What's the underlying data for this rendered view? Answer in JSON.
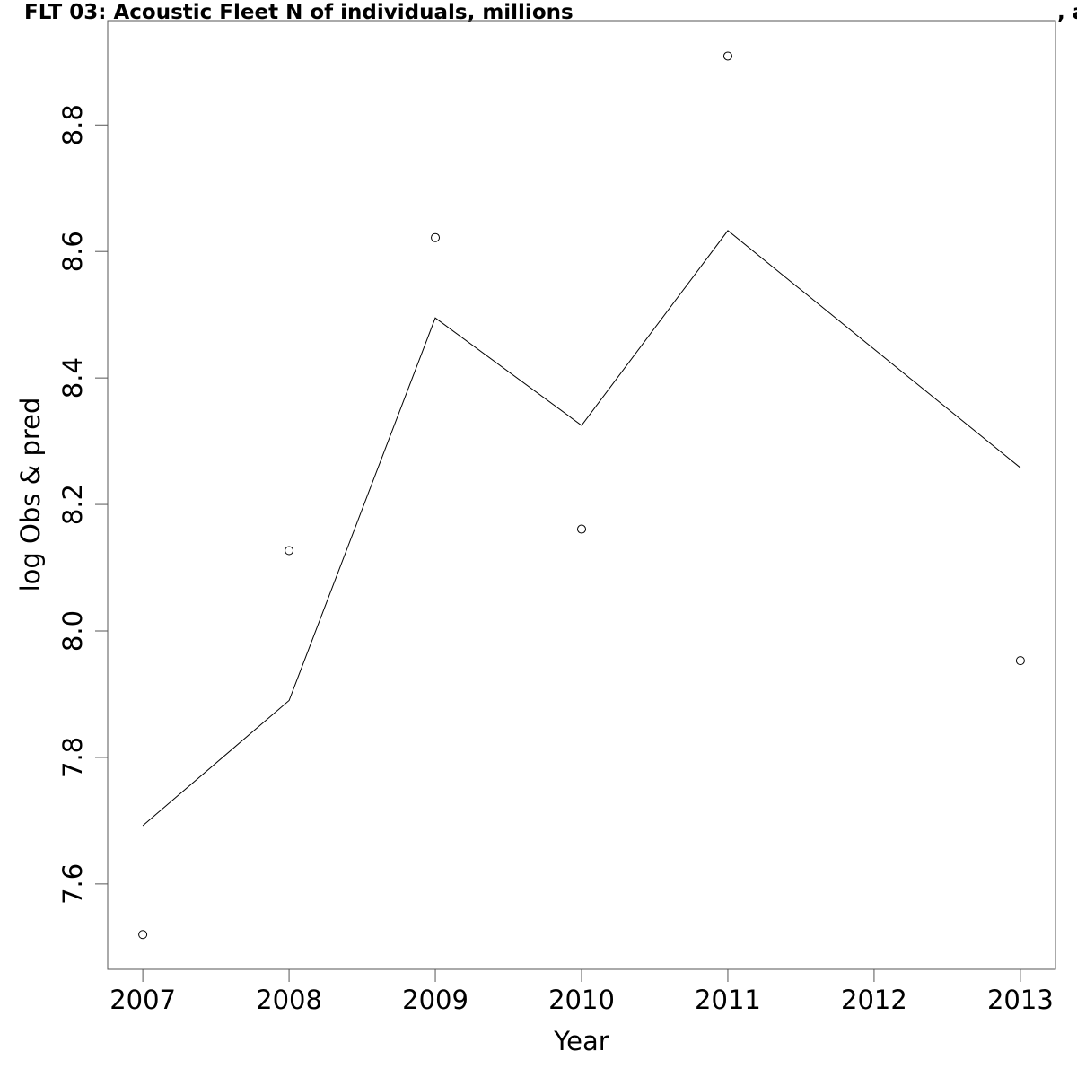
{
  "chart_data": {
    "type": "line",
    "title": "FLT 03: Acoustic Fleet   N of individuals, millions",
    "title_trailing": ", a",
    "xlabel": "Year",
    "ylabel": "log Obs & pred",
    "x_ticks": [
      "2007",
      "2008",
      "2009",
      "2010",
      "2011",
      "2012",
      "2013"
    ],
    "y_ticks": [
      "7.6",
      "7.8",
      "8.0",
      "8.2",
      "8.4",
      "8.6",
      "8.8"
    ],
    "xlim": [
      2006.76,
      2013.24
    ],
    "ylim": [
      7.465,
      8.965
    ],
    "grid": false,
    "series": [
      {
        "kind": "points",
        "x": [
          2007,
          2008,
          2009,
          2010,
          2011,
          2013
        ],
        "y": [
          7.52,
          8.127,
          8.622,
          8.161,
          8.909,
          7.953
        ]
      },
      {
        "kind": "line",
        "x": [
          2007,
          2008,
          2009,
          2010,
          2011,
          2013
        ],
        "y": [
          7.692,
          7.89,
          8.495,
          8.325,
          8.633,
          8.258
        ]
      }
    ]
  }
}
